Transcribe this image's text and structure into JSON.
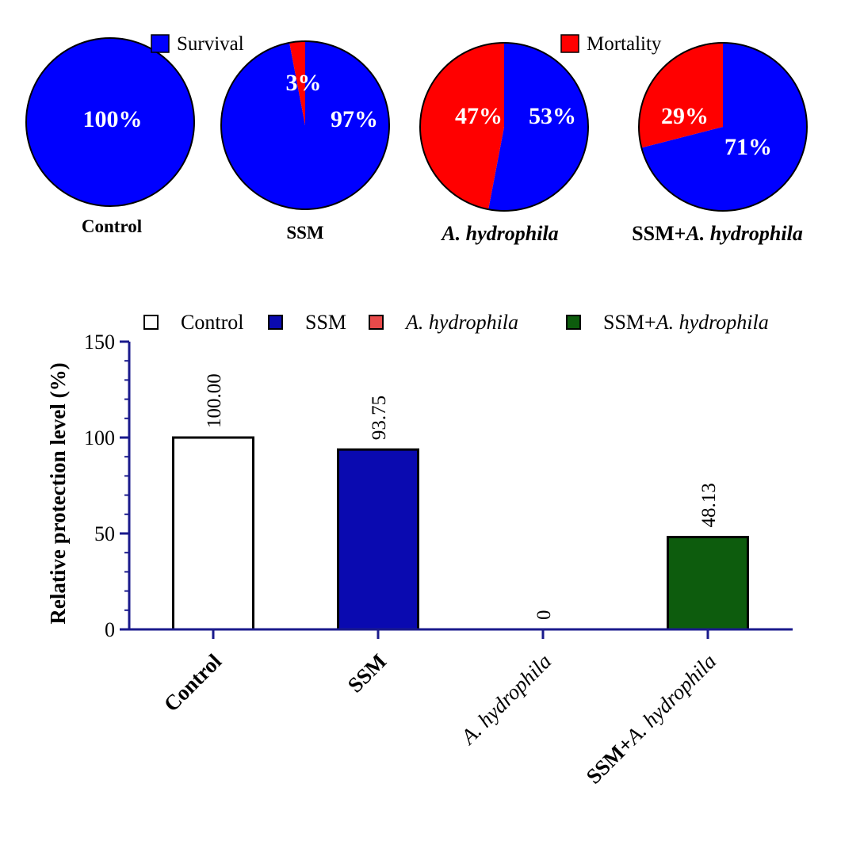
{
  "chart_data": [
    {
      "type": "pie",
      "legend": [
        {
          "name": "Survival",
          "color": "#0000FF"
        },
        {
          "name": "Mortality",
          "color": "#FF0000"
        }
      ],
      "pies": [
        {
          "label": "Control",
          "italic": false,
          "slices": [
            {
              "name": "Survival",
              "value": 100,
              "text": "100%"
            }
          ]
        },
        {
          "label": "SSM",
          "italic": false,
          "slices": [
            {
              "name": "Survival",
              "value": 97,
              "text": "97%"
            },
            {
              "name": "Mortality",
              "value": 3,
              "text": "3%"
            }
          ]
        },
        {
          "label": "A. hydrophila",
          "italic": true,
          "slices": [
            {
              "name": "Survival",
              "value": 53,
              "text": "53%"
            },
            {
              "name": "Mortality",
              "value": 47,
              "text": "47%"
            }
          ]
        },
        {
          "label_prefix": "SSM+",
          "label_italic": "A. hydrophila",
          "slices": [
            {
              "name": "Survival",
              "value": 71,
              "text": "71%"
            },
            {
              "name": "Mortality",
              "value": 29,
              "text": "29%"
            }
          ]
        }
      ]
    },
    {
      "type": "bar",
      "categories": [
        "Control",
        "SSM",
        "A. hydrophila",
        "SSM+A. hydrophila"
      ],
      "values": [
        100.0,
        93.75,
        0,
        48.13
      ],
      "value_labels": [
        "100.00",
        "93.75",
        "0",
        "48.13"
      ],
      "colors": [
        "#FFFFFF",
        "#0A0AB0",
        "#E84A4A",
        "#0D5C0D"
      ],
      "legend": [
        {
          "name": "Control",
          "color": "#FFFFFF"
        },
        {
          "name": "SSM",
          "color": "#0A0AB0"
        },
        {
          "prefix": "",
          "italic": "A. hydrophila",
          "color": "#E84A4A"
        },
        {
          "prefix": "SSM+",
          "italic": "A. hydrophila",
          "color": "#0D5C0D"
        }
      ],
      "ylabel": "Relative protection level (%)",
      "ylim": [
        0,
        150
      ],
      "yticks": [
        "0",
        "50",
        "100",
        "150"
      ],
      "axis_color": "#1A1A8C"
    }
  ]
}
